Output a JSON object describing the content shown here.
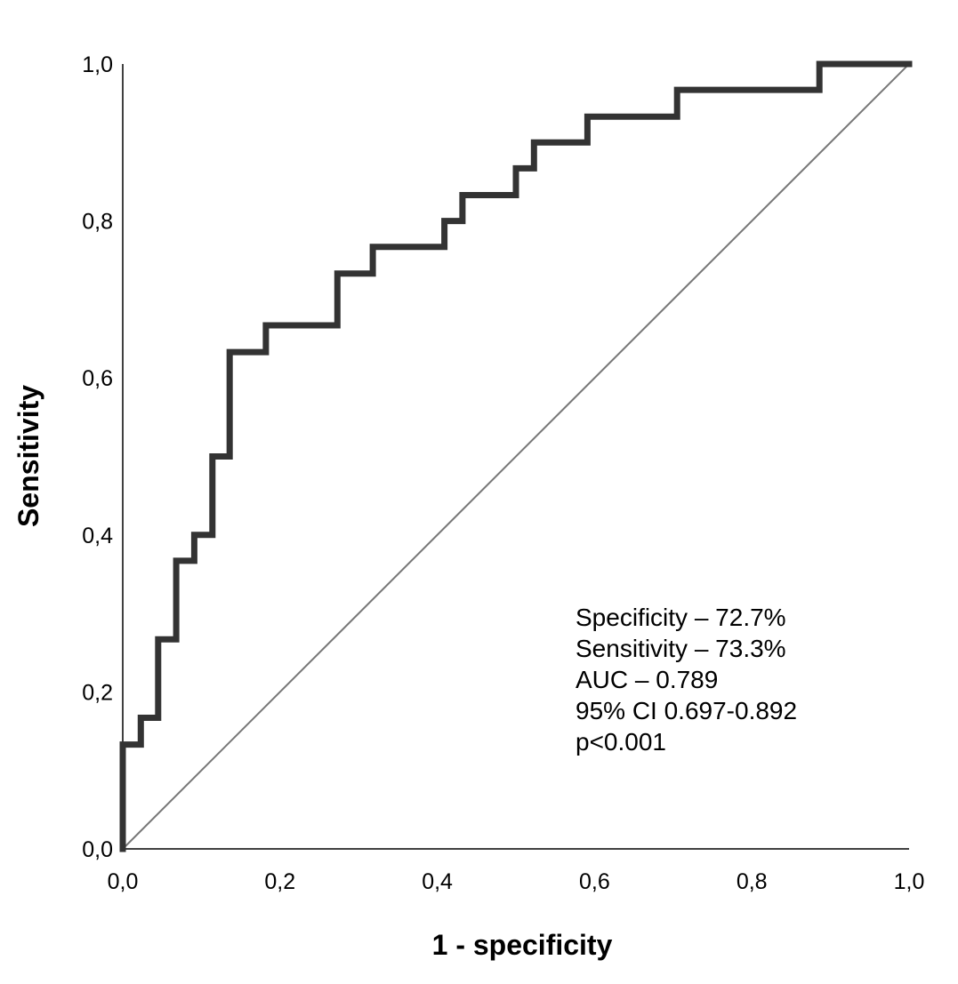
{
  "chart_data": {
    "type": "line",
    "xlabel": "1 - specificity",
    "ylabel": "Sensitivity",
    "xlim": [
      0,
      1
    ],
    "ylim": [
      0,
      1
    ],
    "grid": false,
    "x_ticks": [
      "0,0",
      "0,2",
      "0,4",
      "0,6",
      "0,8",
      "1,0"
    ],
    "y_ticks": [
      "0,0",
      "0,2",
      "0,4",
      "0,6",
      "0,8",
      "1,0"
    ],
    "x_tick_values": [
      0,
      0.2,
      0.4,
      0.6,
      0.8,
      1.0
    ],
    "y_tick_values": [
      0,
      0.2,
      0.4,
      0.6,
      0.8,
      1.0
    ],
    "series": [
      {
        "style": "step",
        "color": "#333333",
        "points": [
          [
            0,
            0
          ],
          [
            0,
            0.133
          ],
          [
            0.023,
            0.133
          ],
          [
            0.023,
            0.167
          ],
          [
            0.045,
            0.167
          ],
          [
            0.045,
            0.267
          ],
          [
            0.068,
            0.267
          ],
          [
            0.068,
            0.367
          ],
          [
            0.091,
            0.367
          ],
          [
            0.091,
            0.4
          ],
          [
            0.114,
            0.4
          ],
          [
            0.114,
            0.5
          ],
          [
            0.136,
            0.5
          ],
          [
            0.136,
            0.633
          ],
          [
            0.182,
            0.633
          ],
          [
            0.182,
            0.667
          ],
          [
            0.273,
            0.667
          ],
          [
            0.273,
            0.733
          ],
          [
            0.318,
            0.733
          ],
          [
            0.318,
            0.767
          ],
          [
            0.409,
            0.767
          ],
          [
            0.409,
            0.8
          ],
          [
            0.432,
            0.8
          ],
          [
            0.432,
            0.833
          ],
          [
            0.5,
            0.833
          ],
          [
            0.5,
            0.867
          ],
          [
            0.523,
            0.867
          ],
          [
            0.523,
            0.9
          ],
          [
            0.591,
            0.9
          ],
          [
            0.591,
            0.933
          ],
          [
            0.705,
            0.933
          ],
          [
            0.705,
            0.967
          ],
          [
            0.886,
            0.967
          ],
          [
            0.886,
            1.0
          ],
          [
            1.0,
            1.0
          ]
        ]
      },
      {
        "style": "reference-diagonal",
        "color": "#777777",
        "points": [
          [
            0,
            0
          ],
          [
            1,
            1
          ]
        ]
      }
    ],
    "annotations": [
      "Specificity – 72.7%",
      "Sensitivity – 73.3%",
      "AUC – 0.789",
      "95% CI 0.697-0.892",
      "p<0.001"
    ]
  }
}
